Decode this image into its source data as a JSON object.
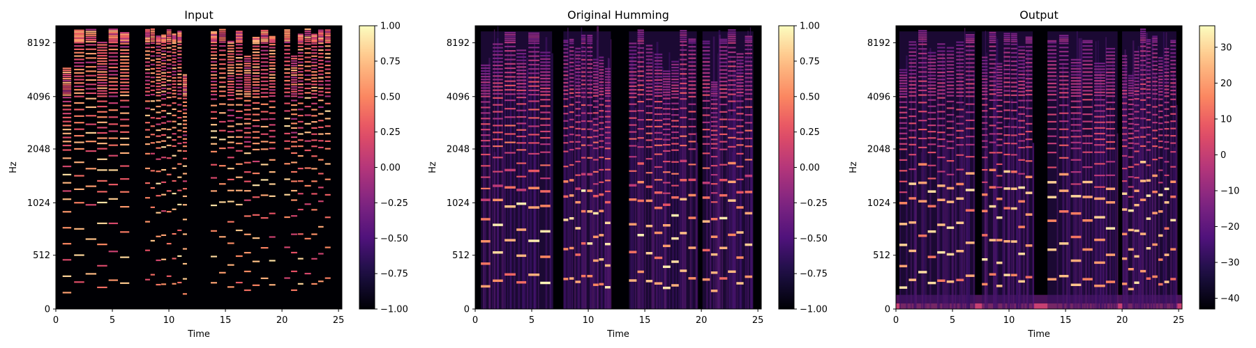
{
  "chart_data": [
    {
      "type": "heatmap",
      "title": "Input",
      "xlabel": "Time",
      "ylabel": "Hz",
      "xlim": [
        0,
        25.3
      ],
      "x_ticks": [
        0,
        5,
        10,
        15,
        20,
        25
      ],
      "y_ticks": [
        "0",
        "512",
        "1024",
        "2048",
        "4096",
        "8192"
      ],
      "colorbar": {
        "range": [
          -1.0,
          1.0
        ],
        "ticks": [
          "1.00",
          "0.75",
          "0.50",
          "0.25",
          "0.00",
          "−0.25",
          "−0.50",
          "−0.75",
          "−1.00"
        ]
      },
      "segments": [
        [
          0.6,
          6.7
        ],
        [
          7.9,
          11.7
        ],
        [
          13.7,
          19.6
        ],
        [
          20.2,
          24.4
        ]
      ],
      "f0_hz": [
        150,
        240,
        340,
        240,
        300,
        250,
        260,
        340,
        240,
        250
      ],
      "style": "harmonic-lines"
    },
    {
      "type": "heatmap",
      "title": "Original Humming",
      "xlabel": "Time",
      "ylabel": "Hz",
      "xlim": [
        0,
        25.3
      ],
      "x_ticks": [
        0,
        5,
        10,
        15,
        20,
        25
      ],
      "y_ticks": [
        "0",
        "512",
        "1024",
        "2048",
        "4096",
        "8192"
      ],
      "colorbar": {
        "range": [
          -1.0,
          1.0
        ],
        "ticks": [
          "1.00",
          "0.75",
          "0.50",
          "0.25",
          "0.00",
          "−0.25",
          "−0.50",
          "−0.75",
          "−1.00"
        ]
      },
      "segments": [
        [
          0.5,
          6.8
        ],
        [
          7.8,
          12.0
        ],
        [
          13.6,
          19.6
        ],
        [
          20.1,
          24.6
        ]
      ],
      "f0_hz": [
        200,
        250,
        320,
        260,
        280,
        250,
        270,
        320,
        250,
        260
      ],
      "style": "voice-formants"
    },
    {
      "type": "heatmap",
      "title": "Output",
      "xlabel": "Time",
      "ylabel": "Hz",
      "xlim": [
        0,
        25.3
      ],
      "x_ticks": [
        0,
        5,
        10,
        15,
        20,
        25
      ],
      "y_ticks": [
        "0",
        "512",
        "1024",
        "2048",
        "4096",
        "8192"
      ],
      "colorbar": {
        "range": [
          -43,
          36
        ],
        "ticks": [
          "30",
          "20",
          "10",
          "0",
          "−10",
          "−20",
          "−30",
          "−40"
        ],
        "tick_values": [
          30,
          20,
          10,
          0,
          -10,
          -20,
          -30,
          -40
        ]
      },
      "segments": [
        [
          0.3,
          7.0
        ],
        [
          7.6,
          12.1
        ],
        [
          13.4,
          19.6
        ],
        [
          20.0,
          24.8
        ]
      ],
      "f0_hz": [
        200,
        250,
        300,
        260,
        280,
        250,
        270,
        300,
        250,
        260
      ],
      "style": "dense-output"
    }
  ]
}
